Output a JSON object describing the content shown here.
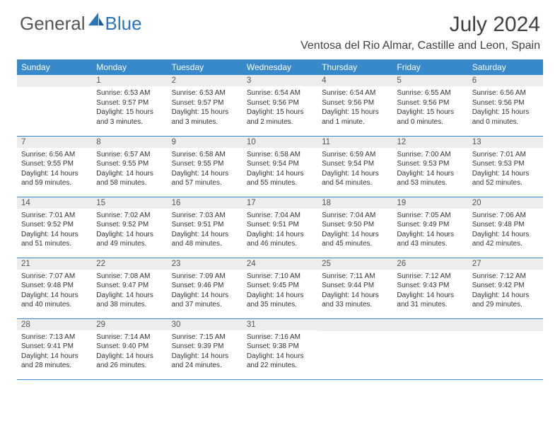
{
  "brand": {
    "part1": "General",
    "part2": "Blue",
    "accent_color": "#2a74b8"
  },
  "title": "July 2024",
  "location": "Ventosa del Rio Almar, Castille and Leon, Spain",
  "header_bg": "#3789ca",
  "daynum_bg": "#ededed",
  "weekdays": [
    "Sunday",
    "Monday",
    "Tuesday",
    "Wednesday",
    "Thursday",
    "Friday",
    "Saturday"
  ],
  "weeks": [
    [
      null,
      {
        "n": "1",
        "sr": "Sunrise: 6:53 AM",
        "ss": "Sunset: 9:57 PM",
        "dl": "Daylight: 15 hours and 3 minutes."
      },
      {
        "n": "2",
        "sr": "Sunrise: 6:53 AM",
        "ss": "Sunset: 9:57 PM",
        "dl": "Daylight: 15 hours and 3 minutes."
      },
      {
        "n": "3",
        "sr": "Sunrise: 6:54 AM",
        "ss": "Sunset: 9:56 PM",
        "dl": "Daylight: 15 hours and 2 minutes."
      },
      {
        "n": "4",
        "sr": "Sunrise: 6:54 AM",
        "ss": "Sunset: 9:56 PM",
        "dl": "Daylight: 15 hours and 1 minute."
      },
      {
        "n": "5",
        "sr": "Sunrise: 6:55 AM",
        "ss": "Sunset: 9:56 PM",
        "dl": "Daylight: 15 hours and 0 minutes."
      },
      {
        "n": "6",
        "sr": "Sunrise: 6:56 AM",
        "ss": "Sunset: 9:56 PM",
        "dl": "Daylight: 15 hours and 0 minutes."
      }
    ],
    [
      {
        "n": "7",
        "sr": "Sunrise: 6:56 AM",
        "ss": "Sunset: 9:55 PM",
        "dl": "Daylight: 14 hours and 59 minutes."
      },
      {
        "n": "8",
        "sr": "Sunrise: 6:57 AM",
        "ss": "Sunset: 9:55 PM",
        "dl": "Daylight: 14 hours and 58 minutes."
      },
      {
        "n": "9",
        "sr": "Sunrise: 6:58 AM",
        "ss": "Sunset: 9:55 PM",
        "dl": "Daylight: 14 hours and 57 minutes."
      },
      {
        "n": "10",
        "sr": "Sunrise: 6:58 AM",
        "ss": "Sunset: 9:54 PM",
        "dl": "Daylight: 14 hours and 55 minutes."
      },
      {
        "n": "11",
        "sr": "Sunrise: 6:59 AM",
        "ss": "Sunset: 9:54 PM",
        "dl": "Daylight: 14 hours and 54 minutes."
      },
      {
        "n": "12",
        "sr": "Sunrise: 7:00 AM",
        "ss": "Sunset: 9:53 PM",
        "dl": "Daylight: 14 hours and 53 minutes."
      },
      {
        "n": "13",
        "sr": "Sunrise: 7:01 AM",
        "ss": "Sunset: 9:53 PM",
        "dl": "Daylight: 14 hours and 52 minutes."
      }
    ],
    [
      {
        "n": "14",
        "sr": "Sunrise: 7:01 AM",
        "ss": "Sunset: 9:52 PM",
        "dl": "Daylight: 14 hours and 51 minutes."
      },
      {
        "n": "15",
        "sr": "Sunrise: 7:02 AM",
        "ss": "Sunset: 9:52 PM",
        "dl": "Daylight: 14 hours and 49 minutes."
      },
      {
        "n": "16",
        "sr": "Sunrise: 7:03 AM",
        "ss": "Sunset: 9:51 PM",
        "dl": "Daylight: 14 hours and 48 minutes."
      },
      {
        "n": "17",
        "sr": "Sunrise: 7:04 AM",
        "ss": "Sunset: 9:51 PM",
        "dl": "Daylight: 14 hours and 46 minutes."
      },
      {
        "n": "18",
        "sr": "Sunrise: 7:04 AM",
        "ss": "Sunset: 9:50 PM",
        "dl": "Daylight: 14 hours and 45 minutes."
      },
      {
        "n": "19",
        "sr": "Sunrise: 7:05 AM",
        "ss": "Sunset: 9:49 PM",
        "dl": "Daylight: 14 hours and 43 minutes."
      },
      {
        "n": "20",
        "sr": "Sunrise: 7:06 AM",
        "ss": "Sunset: 9:48 PM",
        "dl": "Daylight: 14 hours and 42 minutes."
      }
    ],
    [
      {
        "n": "21",
        "sr": "Sunrise: 7:07 AM",
        "ss": "Sunset: 9:48 PM",
        "dl": "Daylight: 14 hours and 40 minutes."
      },
      {
        "n": "22",
        "sr": "Sunrise: 7:08 AM",
        "ss": "Sunset: 9:47 PM",
        "dl": "Daylight: 14 hours and 38 minutes."
      },
      {
        "n": "23",
        "sr": "Sunrise: 7:09 AM",
        "ss": "Sunset: 9:46 PM",
        "dl": "Daylight: 14 hours and 37 minutes."
      },
      {
        "n": "24",
        "sr": "Sunrise: 7:10 AM",
        "ss": "Sunset: 9:45 PM",
        "dl": "Daylight: 14 hours and 35 minutes."
      },
      {
        "n": "25",
        "sr": "Sunrise: 7:11 AM",
        "ss": "Sunset: 9:44 PM",
        "dl": "Daylight: 14 hours and 33 minutes."
      },
      {
        "n": "26",
        "sr": "Sunrise: 7:12 AM",
        "ss": "Sunset: 9:43 PM",
        "dl": "Daylight: 14 hours and 31 minutes."
      },
      {
        "n": "27",
        "sr": "Sunrise: 7:12 AM",
        "ss": "Sunset: 9:42 PM",
        "dl": "Daylight: 14 hours and 29 minutes."
      }
    ],
    [
      {
        "n": "28",
        "sr": "Sunrise: 7:13 AM",
        "ss": "Sunset: 9:41 PM",
        "dl": "Daylight: 14 hours and 28 minutes."
      },
      {
        "n": "29",
        "sr": "Sunrise: 7:14 AM",
        "ss": "Sunset: 9:40 PM",
        "dl": "Daylight: 14 hours and 26 minutes."
      },
      {
        "n": "30",
        "sr": "Sunrise: 7:15 AM",
        "ss": "Sunset: 9:39 PM",
        "dl": "Daylight: 14 hours and 24 minutes."
      },
      {
        "n": "31",
        "sr": "Sunrise: 7:16 AM",
        "ss": "Sunset: 9:38 PM",
        "dl": "Daylight: 14 hours and 22 minutes."
      },
      null,
      null,
      null
    ]
  ]
}
